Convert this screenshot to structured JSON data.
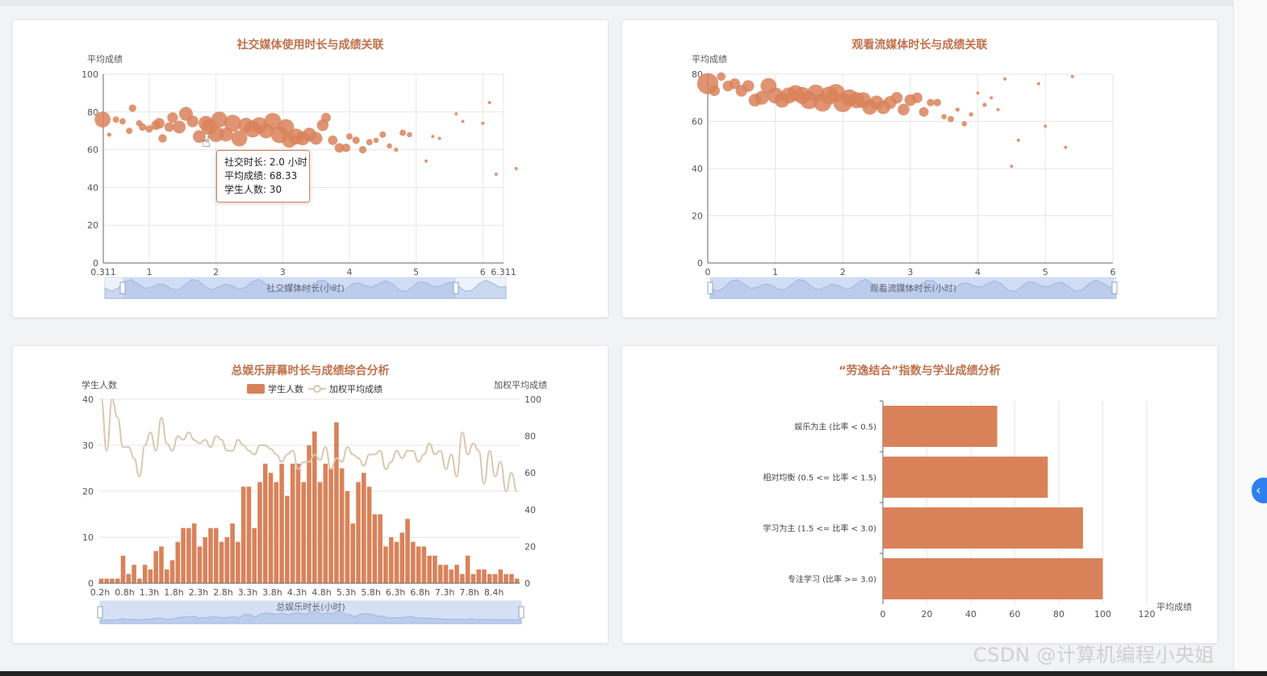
{
  "colors": {
    "accent": "#d9825a",
    "accent_dark": "#c76a43",
    "title": "#c0714b",
    "line": "#d9c8b0",
    "zoom": "#c7d6f0"
  },
  "panels": {
    "social": {
      "title": "社交媒体使用时长与成绩关联",
      "ylabel": "平均成绩",
      "xlabel": "社交媒体时长(小时)"
    },
    "stream": {
      "title": "观看流媒体时长与成绩关联",
      "ylabel": "平均成绩",
      "xlabel": "观看流媒体时长(小时)"
    },
    "screen": {
      "title": "总娱乐屏幕时长与成绩综合分析",
      "ylabel_left": "学生人数",
      "ylabel_right": "加权平均成绩",
      "legend_bar": "学生人数",
      "legend_line": "加权平均成绩",
      "xlabel": "总娱乐时长(小时)"
    },
    "balance": {
      "title": "“劳逸结合”指数与学业成绩分析",
      "xlabel": "平均成绩"
    }
  },
  "tooltip": {
    "line1": "社交时长: 2.0 小时",
    "line2": "平均成绩: 68.33",
    "line3": "学生人数: 30"
  },
  "watermark": "CSDN @计算机编程小央姐",
  "icons": {
    "cursor": "hand-pointer-icon",
    "toggle": "chevron-left-icon"
  },
  "chart_data": [
    {
      "type": "scatter",
      "title": "社交媒体使用时长与成绩关联",
      "xlabel": "社交媒体时长(小时)",
      "ylabel": "平均成绩",
      "xlim": [
        0.311,
        6.311
      ],
      "ylim": [
        0,
        100
      ],
      "xticks": [
        "0.311",
        "1",
        "2",
        "3",
        "4",
        "5",
        "6",
        "6.311"
      ],
      "yticks": [
        "0",
        "20",
        "40",
        "60",
        "80",
        "100"
      ],
      "points": [
        [
          0.3,
          76,
          30
        ],
        [
          0.4,
          68,
          8
        ],
        [
          0.5,
          76,
          12
        ],
        [
          0.6,
          75,
          12
        ],
        [
          0.7,
          70,
          12
        ],
        [
          0.75,
          82,
          14
        ],
        [
          0.85,
          74,
          12
        ],
        [
          0.9,
          72,
          14
        ],
        [
          1.0,
          71,
          14
        ],
        [
          1.1,
          73,
          18
        ],
        [
          1.15,
          74,
          20
        ],
        [
          1.2,
          66,
          16
        ],
        [
          1.3,
          72,
          18
        ],
        [
          1.35,
          77,
          20
        ],
        [
          1.45,
          72,
          24
        ],
        [
          1.55,
          79,
          26
        ],
        [
          1.65,
          75,
          22
        ],
        [
          1.75,
          67,
          24
        ],
        [
          1.85,
          74,
          28
        ],
        [
          1.9,
          72,
          30
        ],
        [
          2.0,
          68.33,
          30
        ],
        [
          2.05,
          76,
          30
        ],
        [
          2.15,
          68,
          26
        ],
        [
          2.25,
          74,
          32
        ],
        [
          2.35,
          66,
          30
        ],
        [
          2.45,
          73,
          28
        ],
        [
          2.55,
          71,
          32
        ],
        [
          2.65,
          73,
          30
        ],
        [
          2.75,
          70,
          28
        ],
        [
          2.85,
          75,
          32
        ],
        [
          2.95,
          68,
          32
        ],
        [
          3.05,
          72,
          30
        ],
        [
          3.1,
          65,
          28
        ],
        [
          3.2,
          67,
          30
        ],
        [
          3.3,
          66,
          26
        ],
        [
          3.4,
          68,
          26
        ],
        [
          3.5,
          66,
          24
        ],
        [
          3.6,
          73,
          22
        ],
        [
          3.65,
          77,
          18
        ],
        [
          3.75,
          65,
          18
        ],
        [
          3.85,
          61,
          18
        ],
        [
          3.95,
          61,
          16
        ],
        [
          4.0,
          67,
          12
        ],
        [
          4.1,
          65,
          14
        ],
        [
          4.2,
          60,
          14
        ],
        [
          4.3,
          64,
          12
        ],
        [
          4.4,
          65,
          10
        ],
        [
          4.5,
          68,
          12
        ],
        [
          4.6,
          62,
          10
        ],
        [
          4.7,
          60,
          8
        ],
        [
          4.8,
          69,
          12
        ],
        [
          4.9,
          68,
          10
        ],
        [
          5.15,
          54,
          4
        ],
        [
          5.25,
          67,
          4
        ],
        [
          5.35,
          66,
          6
        ],
        [
          5.6,
          79,
          4
        ],
        [
          5.7,
          75,
          4
        ],
        [
          6.0,
          74,
          4
        ],
        [
          6.1,
          85,
          4
        ],
        [
          6.2,
          47,
          4
        ],
        [
          6.5,
          50,
          4
        ]
      ]
    },
    {
      "type": "scatter",
      "title": "观看流媒体时长与成绩关联",
      "xlabel": "观看流媒体时长(小时)",
      "ylabel": "平均成绩",
      "xlim": [
        0,
        6
      ],
      "ylim": [
        0,
        80
      ],
      "xticks": [
        "0",
        "1",
        "2",
        "3",
        "4",
        "5",
        "6"
      ],
      "yticks": [
        "0",
        "20",
        "40",
        "60",
        "80"
      ],
      "points": [
        [
          0.0,
          76,
          40
        ],
        [
          0.1,
          73,
          20
        ],
        [
          0.2,
          79,
          16
        ],
        [
          0.3,
          75,
          20
        ],
        [
          0.4,
          76,
          20
        ],
        [
          0.5,
          73,
          22
        ],
        [
          0.6,
          75,
          22
        ],
        [
          0.7,
          69,
          24
        ],
        [
          0.8,
          70,
          26
        ],
        [
          0.9,
          75,
          30
        ],
        [
          1.0,
          71,
          30
        ],
        [
          1.1,
          69,
          28
        ],
        [
          1.2,
          71,
          30
        ],
        [
          1.3,
          72,
          30
        ],
        [
          1.4,
          71,
          32
        ],
        [
          1.5,
          69,
          34
        ],
        [
          1.6,
          72,
          32
        ],
        [
          1.7,
          68,
          34
        ],
        [
          1.8,
          71,
          34
        ],
        [
          1.9,
          72,
          34
        ],
        [
          2.0,
          68,
          36
        ],
        [
          2.1,
          70,
          32
        ],
        [
          2.2,
          69,
          30
        ],
        [
          2.3,
          69,
          30
        ],
        [
          2.4,
          66,
          28
        ],
        [
          2.5,
          68,
          26
        ],
        [
          2.6,
          66,
          26
        ],
        [
          2.7,
          68,
          24
        ],
        [
          2.8,
          70,
          22
        ],
        [
          2.9,
          65,
          22
        ],
        [
          3.0,
          69,
          22
        ],
        [
          3.1,
          70,
          20
        ],
        [
          3.2,
          64,
          18
        ],
        [
          3.3,
          68,
          14
        ],
        [
          3.4,
          68,
          14
        ],
        [
          3.5,
          62,
          10
        ],
        [
          3.6,
          61,
          12
        ],
        [
          3.7,
          65,
          8
        ],
        [
          3.8,
          59,
          10
        ],
        [
          3.9,
          63,
          8
        ],
        [
          4.0,
          72,
          6
        ],
        [
          4.1,
          67,
          8
        ],
        [
          4.2,
          70,
          6
        ],
        [
          4.3,
          65,
          6
        ],
        [
          4.4,
          78,
          4
        ],
        [
          4.5,
          41,
          4
        ],
        [
          4.6,
          52,
          4
        ],
        [
          4.9,
          76,
          4
        ],
        [
          5.0,
          58,
          4
        ],
        [
          5.3,
          49,
          4
        ],
        [
          5.4,
          79,
          4
        ]
      ]
    },
    {
      "type": "bar",
      "title": "总娱乐屏幕时长与成绩综合分析",
      "xlabel": "总娱乐时长(小时)",
      "ylabel": "学生人数",
      "y2label": "加权平均成绩",
      "ylim": [
        0,
        40
      ],
      "y2lim": [
        0,
        100
      ],
      "xtick_labels": [
        "0.2h",
        "0.8h",
        "1.3h",
        "1.8h",
        "2.3h",
        "2.8h",
        "3.3h",
        "3.8h",
        "4.3h",
        "4.8h",
        "5.3h",
        "5.8h",
        "6.3h",
        "6.8h",
        "7.3h",
        "7.8h",
        "8.4h"
      ],
      "series": [
        {
          "name": "学生人数",
          "type": "bar",
          "values": [
            1,
            1,
            1,
            1,
            6,
            2,
            4,
            1,
            4,
            3,
            7,
            8,
            3,
            5,
            9,
            12,
            12,
            13,
            8,
            10,
            12,
            12,
            9,
            10,
            13,
            9,
            21,
            21,
            12,
            22,
            26,
            24,
            22,
            26,
            19,
            26,
            26,
            22,
            30,
            33,
            22,
            26,
            25,
            35,
            25,
            20,
            13,
            22,
            24,
            21,
            15,
            15,
            8,
            10,
            9,
            11,
            14,
            9,
            8,
            8,
            6,
            6,
            4,
            4,
            3,
            4,
            2,
            6,
            2,
            3,
            3,
            2,
            2,
            3,
            2,
            2,
            1
          ]
        },
        {
          "name": "加权平均成绩",
          "type": "line",
          "values": [
            100,
            72,
            100,
            90,
            74,
            74,
            68,
            58,
            75,
            82,
            72,
            90,
            76,
            72,
            80,
            78,
            82,
            78,
            76,
            78,
            74,
            80,
            78,
            72,
            72,
            78,
            75,
            72,
            70,
            75,
            75,
            73,
            70,
            66,
            70,
            72,
            62,
            66,
            66,
            70,
            67,
            74,
            62,
            68,
            66,
            74,
            70,
            68,
            64,
            70,
            70,
            72,
            62,
            66,
            72,
            68,
            72,
            72,
            66,
            70,
            76,
            70,
            72,
            62,
            70,
            58,
            82,
            70,
            76,
            72,
            54,
            72,
            58,
            66,
            50,
            60,
            50
          ]
        }
      ]
    },
    {
      "type": "bar",
      "orientation": "horizontal",
      "title": "“劳逸结合”指数与学业成绩分析",
      "xlabel": "平均成绩",
      "xlim": [
        0,
        120
      ],
      "xticks": [
        "0",
        "20",
        "40",
        "60",
        "80",
        "100",
        "120"
      ],
      "categories": [
        "娱乐为主 (比率 < 0.5)",
        "相对均衡 (0.5 <= 比率 < 1.5)",
        "学习为主 (1.5 <= 比率 < 3.0)",
        "专注学习 (比率 >= 3.0)"
      ],
      "values": [
        52,
        75,
        91,
        100
      ]
    }
  ]
}
